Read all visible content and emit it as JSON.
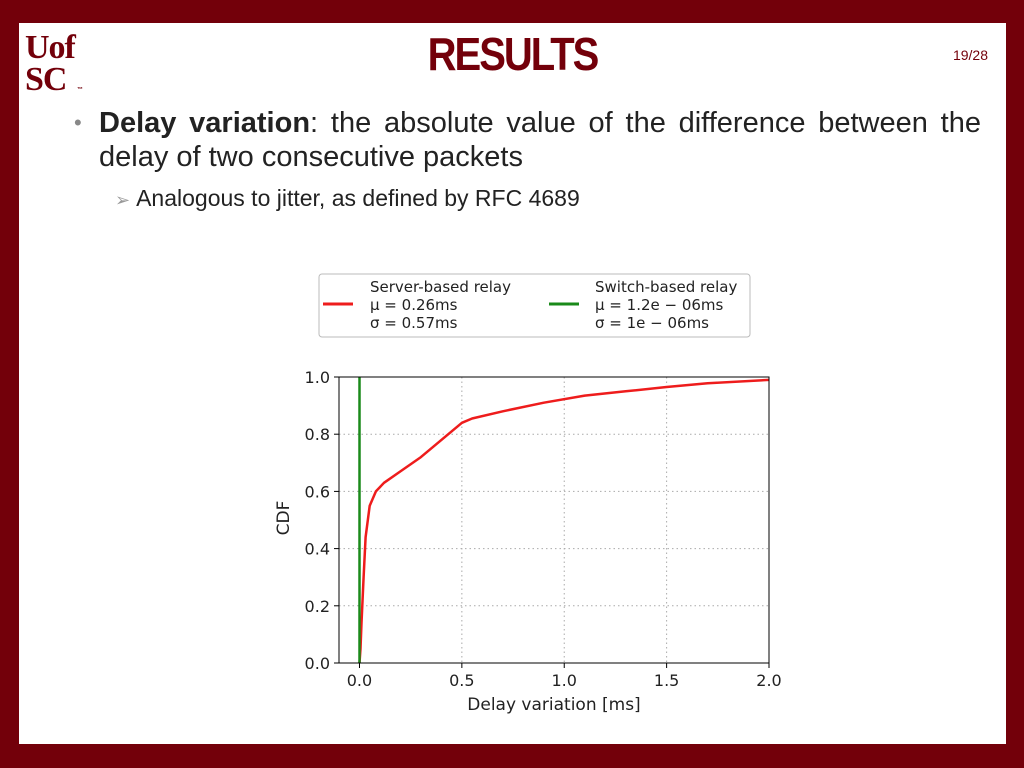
{
  "logo": {
    "line1": "Uof",
    "line2": "SC",
    "tm": "™"
  },
  "title": "RESULTS",
  "page_number": "19/28",
  "bullets": [
    {
      "bold": "Delay variation",
      "text": ": the absolute value of the difference between the delay of two consecutive packets"
    },
    {
      "text": "Analogous to jitter, as defined by RFC 4689"
    }
  ],
  "colors": {
    "brand": "#73000a",
    "server_series": "#ee1c1c",
    "switch_series": "#1a8a1a"
  },
  "chart_data": {
    "type": "line",
    "xlabel": "Delay variation [ms]",
    "ylabel": "CDF",
    "xlim": [
      -0.1,
      2.0
    ],
    "ylim": [
      0.0,
      1.0
    ],
    "xticks": [
      "0.0",
      "0.5",
      "1.0",
      "1.5",
      "2.0"
    ],
    "yticks": [
      "0.0",
      "0.2",
      "0.4",
      "0.6",
      "0.8",
      "1.0"
    ],
    "grid": true,
    "legend_placement": "top",
    "series": [
      {
        "name": "Server-based relay",
        "stats": [
          "μ = 0.26ms",
          "σ = 0.57ms"
        ],
        "color": "#ee1c1c",
        "x": [
          0.0,
          0.005,
          0.01,
          0.02,
          0.03,
          0.05,
          0.08,
          0.12,
          0.2,
          0.3,
          0.4,
          0.5,
          0.55,
          0.7,
          0.9,
          1.1,
          1.3,
          1.5,
          1.7,
          2.0
        ],
        "y": [
          0.0,
          0.05,
          0.14,
          0.3,
          0.44,
          0.55,
          0.6,
          0.63,
          0.67,
          0.72,
          0.78,
          0.84,
          0.855,
          0.88,
          0.91,
          0.935,
          0.95,
          0.965,
          0.978,
          0.99
        ]
      },
      {
        "name": "Switch-based relay",
        "stats": [
          "μ = 1.2e − 06ms",
          "σ = 1e − 06ms"
        ],
        "color": "#1a8a1a",
        "x": [
          0.0,
          0.0,
          0.0
        ],
        "y": [
          0.0,
          0.5,
          1.0
        ]
      }
    ]
  }
}
